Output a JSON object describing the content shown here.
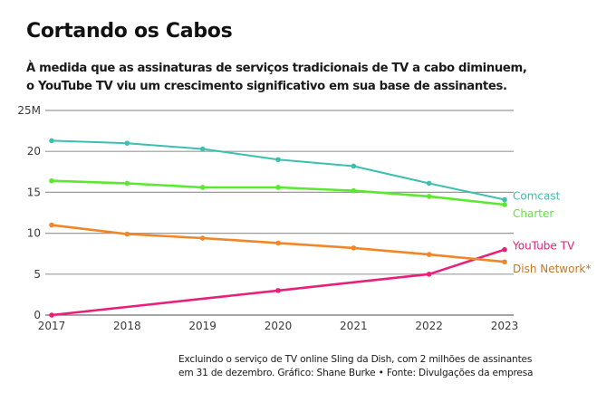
{
  "header": {
    "title": "Cortando os Cabos",
    "subtitle_lines": [
      "À medida que as assinaturas de serviços tradicionais de TV a cabo diminuem,",
      "o YouTube TV viu um crescimento significativo em sua base de assinantes."
    ]
  },
  "footer": {
    "note_lines": [
      "Excluindo o serviço de TV online Sling da Dish, com 2 milhões de assinantes",
      "em 31 de dezembro. Gráfico: Shane Burke • Fonte: Divulgações da empresa"
    ]
  },
  "chart_data": {
    "type": "line",
    "title": "Cortando os Cabos",
    "xlabel": "",
    "ylabel": "",
    "x": [
      2017,
      2018,
      2019,
      2020,
      2021,
      2022,
      2023
    ],
    "x_tick_labels": [
      "2017",
      "2018",
      "2019",
      "2020",
      "2021",
      "2022",
      "2023"
    ],
    "y_ticks": [
      0,
      5,
      10,
      15,
      20,
      25
    ],
    "y_tick_labels": [
      "0",
      "5",
      "10",
      "15",
      "20",
      "25M"
    ],
    "ylim": [
      0,
      25
    ],
    "unit": "millions of subscribers",
    "grid": "horizontal",
    "legend": "inline labels at right end of lines",
    "series": [
      {
        "name": "Comcast",
        "color": "#3dbfb0",
        "values": [
          21.3,
          21.0,
          20.3,
          19.0,
          18.2,
          16.1,
          14.1
        ],
        "markers": [
          true,
          true,
          true,
          true,
          true,
          true,
          true
        ]
      },
      {
        "name": "Charter",
        "color": "#5ce830",
        "values": [
          16.4,
          16.1,
          15.6,
          15.6,
          15.2,
          14.5,
          13.5
        ],
        "markers": [
          true,
          true,
          true,
          true,
          true,
          true,
          true
        ]
      },
      {
        "name": "YouTube TV",
        "color": "#e8207a",
        "values": [
          0,
          1,
          2,
          3,
          4,
          5,
          8
        ],
        "markers": [
          true,
          false,
          false,
          true,
          false,
          true,
          true
        ]
      },
      {
        "name": "Dish Network*",
        "color": "#f0862a",
        "label_color": "#c47628",
        "values": [
          11.0,
          9.9,
          9.4,
          8.8,
          8.2,
          7.4,
          6.5
        ],
        "markers": [
          true,
          true,
          true,
          true,
          true,
          true,
          true
        ]
      }
    ]
  }
}
